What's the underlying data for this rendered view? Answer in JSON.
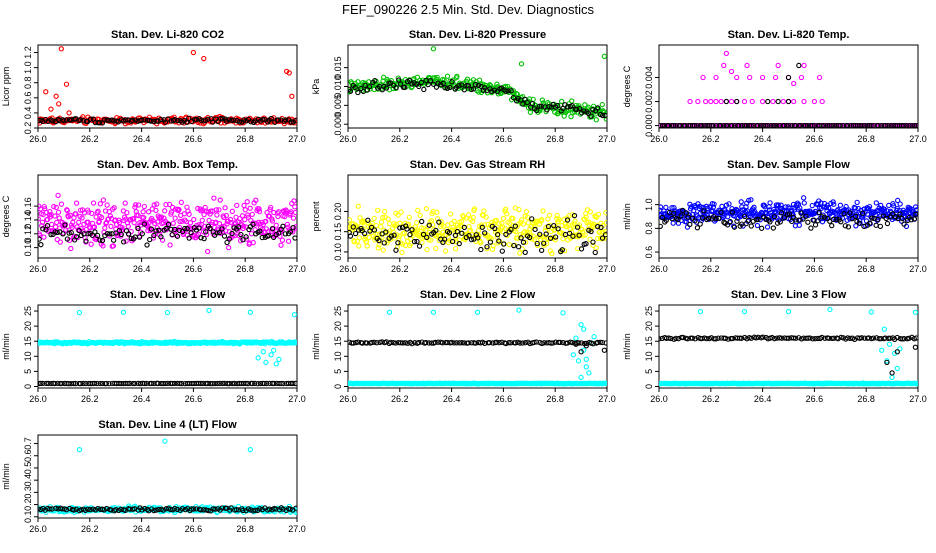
{
  "figure": {
    "title": "FEF_090226  2.5 Min. Std. Dev. Diagnostics"
  },
  "chart_data": [
    {
      "id": "co2",
      "type": "scatter",
      "title": "Stan. Dev. Li-820 CO2",
      "xlabel": "",
      "ylabel": "Licor ppm",
      "xlim": [
        26.0,
        27.0
      ],
      "ylim": [
        0.2,
        1.3
      ],
      "xticks": [
        "26.0",
        "26.2",
        "26.4",
        "26.6",
        "26.8",
        "27.0"
      ],
      "yticks": [
        "0.2",
        "0.4",
        "0.6",
        "0.8",
        "1.0",
        "1.2"
      ],
      "series": [
        {
          "name": "red",
          "color": "#ff0000",
          "base": 0.3,
          "noise": 0.04,
          "n": 240,
          "outliers": [
            [
              26.03,
              0.68
            ],
            [
              26.05,
              0.45
            ],
            [
              26.07,
              0.62
            ],
            [
              26.08,
              0.52
            ],
            [
              26.09,
              1.25
            ],
            [
              26.11,
              0.78
            ],
            [
              26.12,
              0.4
            ],
            [
              26.6,
              1.2
            ],
            [
              26.64,
              1.12
            ],
            [
              26.96,
              0.95
            ],
            [
              26.97,
              0.93
            ],
            [
              26.98,
              0.62
            ]
          ]
        },
        {
          "name": "black",
          "color": "#000000",
          "base": 0.3,
          "noise": 0.025,
          "n": 110,
          "outliers": []
        }
      ]
    },
    {
      "id": "pressure",
      "type": "scatter",
      "title": "Stan. Dev. Li-820 Pressure",
      "xlabel": "",
      "ylabel": "kPa",
      "xlim": [
        26.0,
        27.0
      ],
      "ylim": [
        -0.001,
        0.021
      ],
      "xticks": [
        "26.0",
        "26.2",
        "26.4",
        "26.6",
        "26.8",
        "27.0"
      ],
      "yticks": [
        "0.000",
        "0.005",
        "0.010",
        "0.015"
      ],
      "series": [
        {
          "name": "green",
          "color": "#00c000",
          "base": 0.0105,
          "noise": 0.0015,
          "trend": [
            [
              26.0,
              0.0095
            ],
            [
              26.3,
              0.0115
            ],
            [
              26.6,
              0.0095
            ],
            [
              26.7,
              0.005
            ],
            [
              27.0,
              0.003
            ]
          ],
          "n": 300,
          "outliers": [
            [
              26.33,
              0.02
            ],
            [
              26.67,
              0.016
            ],
            [
              26.99,
              0.018
            ]
          ]
        },
        {
          "name": "black",
          "color": "#000000",
          "base": 0.01,
          "noise": 0.0012,
          "trend": [
            [
              26.0,
              0.0095
            ],
            [
              26.3,
              0.011
            ],
            [
              26.6,
              0.009
            ],
            [
              26.7,
              0.005
            ],
            [
              27.0,
              0.003
            ]
          ],
          "n": 110,
          "outliers": []
        }
      ]
    },
    {
      "id": "temp",
      "type": "scatter",
      "title": "Stan. Dev. Li-820 Temp.",
      "xlabel": "",
      "ylabel": "degrees C",
      "xlim": [
        26.0,
        27.0
      ],
      "ylim": [
        -0.0002,
        0.0067
      ],
      "xticks": [
        "26.0",
        "26.2",
        "26.4",
        "26.6",
        "26.8",
        "27.0"
      ],
      "yticks": [
        "0.000",
        "0.002",
        "0.004"
      ],
      "series": [
        {
          "name": "magenta",
          "color": "#ff00ff",
          "base": 0.0,
          "noise": 0.0,
          "n": 150,
          "outliers": [
            [
              26.12,
              0.002
            ],
            [
              26.15,
              0.002
            ],
            [
              26.18,
              0.002
            ],
            [
              26.2,
              0.002
            ],
            [
              26.22,
              0.002
            ],
            [
              26.24,
              0.002
            ],
            [
              26.26,
              0.002
            ],
            [
              26.28,
              0.002
            ],
            [
              26.3,
              0.002
            ],
            [
              26.33,
              0.002
            ],
            [
              26.36,
              0.002
            ],
            [
              26.4,
              0.002
            ],
            [
              26.44,
              0.002
            ],
            [
              26.48,
              0.002
            ],
            [
              26.5,
              0.002
            ],
            [
              26.52,
              0.002
            ],
            [
              26.56,
              0.002
            ],
            [
              26.6,
              0.002
            ],
            [
              26.63,
              0.002
            ],
            [
              26.17,
              0.004
            ],
            [
              26.22,
              0.004
            ],
            [
              26.26,
              0.006
            ],
            [
              26.3,
              0.004
            ],
            [
              26.35,
              0.004
            ],
            [
              26.4,
              0.004
            ],
            [
              26.45,
              0.004
            ],
            [
              26.5,
              0.004
            ],
            [
              26.55,
              0.004
            ],
            [
              26.62,
              0.004
            ],
            [
              26.25,
              0.005
            ],
            [
              26.34,
              0.005
            ],
            [
              26.46,
              0.005
            ],
            [
              26.56,
              0.005
            ],
            [
              26.28,
              0.0045
            ],
            [
              26.52,
              0.0035
            ]
          ]
        },
        {
          "name": "black",
          "color": "#000000",
          "base": 0.0,
          "noise": 0.0,
          "n": 110,
          "outliers": [
            [
              26.26,
              0.002
            ],
            [
              26.3,
              0.002
            ],
            [
              26.42,
              0.002
            ],
            [
              26.46,
              0.002
            ],
            [
              26.5,
              0.002
            ],
            [
              26.54,
              0.005
            ],
            [
              26.5,
              0.004
            ]
          ]
        }
      ]
    },
    {
      "id": "ambbox",
      "type": "scatter",
      "title": "Stan. Dev. Amb. Box Temp.",
      "xlabel": "",
      "ylabel": "degrees C",
      "xlim": [
        26.0,
        27.0
      ],
      "ylim": [
        0.085,
        0.205
      ],
      "xticks": [
        "26.0",
        "26.2",
        "26.4",
        "26.6",
        "26.8",
        "27.0"
      ],
      "yticks": [
        "0.10",
        "0.12",
        "0.14",
        "0.16"
      ],
      "series": [
        {
          "name": "magenta",
          "color": "#ff00ff",
          "base": 0.135,
          "noise": 0.028,
          "n": 420,
          "outliers": []
        },
        {
          "name": "black",
          "color": "#000000",
          "base": 0.12,
          "noise": 0.012,
          "n": 110,
          "outliers": []
        }
      ]
    },
    {
      "id": "rh",
      "type": "scatter",
      "title": "Stan. Dev. Gas Stream RH",
      "xlabel": "",
      "ylabel": "percent",
      "xlim": [
        26.0,
        27.0
      ],
      "ylim": [
        0.085,
        0.29
      ],
      "xticks": [
        "26.0",
        "26.2",
        "26.4",
        "26.6",
        "26.8",
        "27.0"
      ],
      "yticks": [
        "0.10",
        "0.15",
        "0.20"
      ],
      "series": [
        {
          "name": "yellow",
          "color": "#ffff00",
          "base": 0.155,
          "noise": 0.045,
          "n": 420,
          "outliers": []
        },
        {
          "name": "black",
          "color": "#000000",
          "base": 0.14,
          "noise": 0.035,
          "n": 110,
          "outliers": []
        }
      ]
    },
    {
      "id": "sample",
      "type": "scatter",
      "title": "Stan. Dev. Sample Flow",
      "xlabel": "",
      "ylabel": "ml/min",
      "xlim": [
        26.0,
        27.0
      ],
      "ylim": [
        0.55,
        1.25
      ],
      "xticks": [
        "26.0",
        "26.2",
        "26.4",
        "26.6",
        "26.8",
        "27.0"
      ],
      "yticks": [
        "0.6",
        "0.8",
        "1.0"
      ],
      "series": [
        {
          "name": "blue",
          "color": "#0000ff",
          "base": 0.93,
          "noise": 0.09,
          "n": 420,
          "outliers": []
        },
        {
          "name": "black",
          "color": "#000000",
          "base": 0.88,
          "noise": 0.06,
          "n": 110,
          "outliers": []
        }
      ]
    },
    {
      "id": "line1",
      "type": "scatter",
      "title": "Stan. Dev. Line 1 Flow",
      "xlabel": "",
      "ylabel": "ml/min",
      "xlim": [
        26.0,
        27.0
      ],
      "ylim": [
        -0.5,
        27
      ],
      "xticks": [
        "26.0",
        "26.2",
        "26.4",
        "26.6",
        "26.8",
        "27.0"
      ],
      "yticks": [
        "0",
        "5",
        "10",
        "15",
        "20",
        "25"
      ],
      "series": [
        {
          "name": "cyan",
          "color": "#00ffff",
          "base": 14.5,
          "noise": 0.3,
          "n": 280,
          "outliers": [
            [
              26.16,
              24.5
            ],
            [
              26.33,
              24.6
            ],
            [
              26.5,
              24.5
            ],
            [
              26.66,
              25.2
            ],
            [
              26.82,
              24.6
            ],
            [
              26.99,
              23.8
            ],
            [
              26.85,
              9.5
            ],
            [
              26.88,
              8.0
            ],
            [
              26.9,
              10.5
            ],
            [
              26.92,
              7.5
            ],
            [
              26.87,
              11.5
            ],
            [
              26.91,
              12.0
            ],
            [
              26.93,
              9.0
            ]
          ]
        },
        {
          "name": "black",
          "color": "#000000",
          "base": 1.0,
          "noise": 0.05,
          "n": 110,
          "outliers": []
        }
      ]
    },
    {
      "id": "line2",
      "type": "scatter",
      "title": "Stan. Dev. Line 2 Flow",
      "xlabel": "",
      "ylabel": "ml/min",
      "xlim": [
        26.0,
        27.0
      ],
      "ylim": [
        -0.5,
        27
      ],
      "xticks": [
        "26.0",
        "26.2",
        "26.4",
        "26.6",
        "26.8",
        "27.0"
      ],
      "yticks": [
        "0",
        "5",
        "10",
        "15",
        "20",
        "25"
      ],
      "series": [
        {
          "name": "cyan",
          "color": "#00ffff",
          "base": 1.0,
          "noise": 0.1,
          "n": 280,
          "outliers": [
            [
              26.16,
              24.6
            ],
            [
              26.33,
              24.6
            ],
            [
              26.5,
              24.6
            ],
            [
              26.66,
              25.3
            ],
            [
              26.83,
              24.4
            ],
            [
              26.9,
              20.5
            ],
            [
              26.88,
              16.0
            ],
            [
              26.91,
              12.0
            ],
            [
              26.92,
              9.0
            ],
            [
              26.89,
              8.5
            ],
            [
              26.93,
              4.5
            ],
            [
              26.9,
              3.0
            ],
            [
              26.94,
              14.5
            ],
            [
              26.95,
              16.5
            ],
            [
              26.91,
              19.0
            ],
            [
              26.87,
              10.5
            ],
            [
              26.92,
              6.5
            ]
          ]
        },
        {
          "name": "black",
          "color": "#000000",
          "base": 14.5,
          "noise": 0.25,
          "n": 110,
          "outliers": [
            [
              26.88,
              14.0
            ],
            [
              26.9,
              11.5
            ],
            [
              26.92,
              13.5
            ],
            [
              26.99,
              12.0
            ]
          ]
        }
      ]
    },
    {
      "id": "line3",
      "type": "scatter",
      "title": "Stan. Dev. Line 3 Flow",
      "xlabel": "",
      "ylabel": "ml/min",
      "xlim": [
        26.0,
        27.0
      ],
      "ylim": [
        -0.5,
        27
      ],
      "xticks": [
        "26.0",
        "26.2",
        "26.4",
        "26.6",
        "26.8",
        "27.0"
      ],
      "yticks": [
        "0",
        "5",
        "10",
        "15",
        "20",
        "25"
      ],
      "series": [
        {
          "name": "cyan",
          "color": "#00ffff",
          "base": 1.0,
          "noise": 0.1,
          "n": 280,
          "outliers": [
            [
              26.16,
              24.8
            ],
            [
              26.33,
              24.8
            ],
            [
              26.5,
              24.8
            ],
            [
              26.66,
              25.5
            ],
            [
              26.82,
              24.7
            ],
            [
              26.99,
              24.6
            ],
            [
              26.87,
              19.0
            ],
            [
              26.89,
              14.0
            ],
            [
              26.91,
              11.0
            ],
            [
              26.88,
              8.5
            ],
            [
              26.92,
              6.0
            ],
            [
              26.9,
              3.0
            ],
            [
              26.93,
              12.5
            ],
            [
              26.86,
              12.0
            ]
          ]
        },
        {
          "name": "black",
          "color": "#000000",
          "base": 16.0,
          "noise": 0.3,
          "n": 110,
          "outliers": [
            [
              26.88,
              8.0
            ],
            [
              26.9,
              4.5
            ],
            [
              26.92,
              11.5
            ],
            [
              26.99,
              13.0
            ]
          ]
        }
      ]
    },
    {
      "id": "line4",
      "type": "scatter",
      "title": "Stan. Dev. Line 4 (LT) Flow",
      "xlabel": "",
      "ylabel": "ml/min",
      "xlim": [
        26.0,
        27.0
      ],
      "ylim": [
        0.09,
        0.77
      ],
      "xticks": [
        "26.0",
        "26.2",
        "26.4",
        "26.6",
        "26.8",
        "27.0"
      ],
      "yticks": [
        "0.1",
        "0.2",
        "0.3",
        "0.4",
        "0.5",
        "0.6",
        "0.7"
      ],
      "series": [
        {
          "name": "cyan",
          "color": "#00ffff",
          "base": 0.16,
          "noise": 0.02,
          "n": 300,
          "outliers": [
            [
              26.16,
              0.65
            ],
            [
              26.49,
              0.72
            ],
            [
              26.82,
              0.65
            ]
          ]
        },
        {
          "name": "black",
          "color": "#000000",
          "base": 0.16,
          "noise": 0.012,
          "n": 110,
          "outliers": []
        }
      ]
    }
  ]
}
